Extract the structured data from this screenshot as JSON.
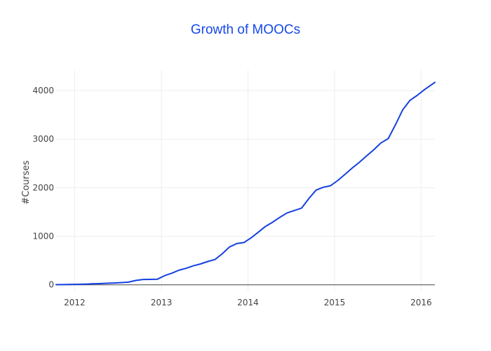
{
  "colors": {
    "title": "#1548e8",
    "line": "#1541e0",
    "grid": "#eeeeee",
    "zeroline": "#444444",
    "text": "#444444"
  },
  "chart_data": {
    "type": "line",
    "title": "Growth of MOOCs",
    "xlabel": "",
    "ylabel": "#Courses",
    "grid": true,
    "x_ticks": [
      "2012",
      "2013",
      "2014",
      "2015",
      "2016"
    ],
    "y_ticks": [
      "0",
      "1000",
      "2000",
      "3000",
      "4000"
    ],
    "xlim": [
      "2011-10-15",
      "2016-02-28"
    ],
    "ylim": [
      -120,
      4420
    ],
    "series": [
      {
        "x": [
          "2011-10-15",
          "2011-11-15",
          "2011-12-15",
          "2012-01-15",
          "2012-02-15",
          "2012-03-15",
          "2012-04-15",
          "2012-05-15",
          "2012-06-15",
          "2012-07-15",
          "2012-08-15",
          "2012-09-15",
          "2012-10-15",
          "2012-11-15",
          "2012-12-15",
          "2013-01-15",
          "2013-02-15",
          "2013-03-15",
          "2013-04-15",
          "2013-05-15",
          "2013-06-15",
          "2013-07-15",
          "2013-08-15",
          "2013-09-15",
          "2013-10-15",
          "2013-11-15",
          "2013-12-15",
          "2014-01-15",
          "2014-02-15",
          "2014-03-15",
          "2014-04-15",
          "2014-05-15",
          "2014-06-15",
          "2014-07-15",
          "2014-08-15",
          "2014-09-15",
          "2014-10-15",
          "2014-11-15",
          "2014-12-15",
          "2015-01-15",
          "2015-02-15",
          "2015-03-15",
          "2015-04-15",
          "2015-05-15",
          "2015-06-15",
          "2015-07-15",
          "2015-08-15",
          "2015-09-15",
          "2015-10-15",
          "2015-11-15",
          "2015-12-15",
          "2016-01-15",
          "2016-02-28"
        ],
        "y": [
          3,
          5,
          8,
          10,
          15,
          20,
          25,
          32,
          38,
          45,
          55,
          90,
          110,
          112,
          115,
          190,
          240,
          300,
          340,
          390,
          430,
          480,
          520,
          640,
          780,
          850,
          870,
          970,
          1090,
          1200,
          1290,
          1390,
          1480,
          1530,
          1580,
          1780,
          1950,
          2010,
          2040,
          2150,
          2280,
          2400,
          2520,
          2650,
          2780,
          2920,
          3010,
          3300,
          3600,
          3800,
          3900,
          4020,
          4170
        ]
      }
    ]
  }
}
